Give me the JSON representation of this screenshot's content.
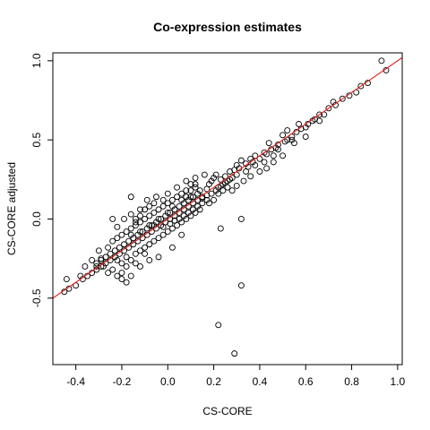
{
  "chart_data": {
    "type": "scatter",
    "title": "Co-expression estimates",
    "xlabel": "CS-CORE",
    "ylabel": "CS-CORE adjusted",
    "xlim": [
      -0.5,
      1.02
    ],
    "ylim": [
      -0.92,
      1.05
    ],
    "x_ticks": [
      -0.4,
      -0.2,
      0.0,
      0.2,
      0.4,
      0.6,
      0.8,
      1.0
    ],
    "x_tick_labels": [
      "-0.4",
      "-0.2",
      "0.0",
      "0.2",
      "0.4",
      "0.6",
      "0.8",
      "1.0"
    ],
    "y_ticks": [
      -0.5,
      0.0,
      0.5,
      1.0
    ],
    "y_tick_labels": [
      "-0.5",
      "0.0",
      "0.5",
      "1.0"
    ],
    "grid": false,
    "reference_line": {
      "slope": 1,
      "intercept": 0,
      "color": "#e0201b"
    },
    "point_color": "#000000",
    "series": [
      {
        "values": [
          [
            0.93,
            1.0
          ],
          [
            0.95,
            0.94
          ],
          [
            0.87,
            0.86
          ],
          [
            0.84,
            0.84
          ],
          [
            0.82,
            0.8
          ],
          [
            0.79,
            0.78
          ],
          [
            0.76,
            0.76
          ],
          [
            0.73,
            0.72
          ],
          [
            0.7,
            0.7
          ],
          [
            0.68,
            0.66
          ],
          [
            0.66,
            0.66
          ],
          [
            0.63,
            0.62
          ],
          [
            0.61,
            0.6
          ],
          [
            0.6,
            0.58
          ],
          [
            0.58,
            0.57
          ],
          [
            0.56,
            0.55
          ],
          [
            0.54,
            0.52
          ],
          [
            0.52,
            0.5
          ],
          [
            0.51,
            0.49
          ],
          [
            0.5,
            0.53
          ],
          [
            0.48,
            0.47
          ],
          [
            0.47,
            0.45
          ],
          [
            0.45,
            0.44
          ],
          [
            0.43,
            0.41
          ],
          [
            0.42,
            0.42
          ],
          [
            0.4,
            0.38
          ],
          [
            0.38,
            0.4
          ],
          [
            0.37,
            0.36
          ],
          [
            0.35,
            0.33
          ],
          [
            0.34,
            0.35
          ],
          [
            0.6,
            0.52
          ],
          [
            0.55,
            0.48
          ],
          [
            0.5,
            0.4
          ],
          [
            0.46,
            0.36
          ],
          [
            0.43,
            0.32
          ],
          [
            0.4,
            0.3
          ],
          [
            0.36,
            0.27
          ],
          [
            0.33,
            0.24
          ],
          [
            0.3,
            0.21
          ],
          [
            0.28,
            0.18
          ],
          [
            0.32,
            0.37
          ],
          [
            0.3,
            0.34
          ],
          [
            0.27,
            0.3
          ],
          [
            0.25,
            0.27
          ],
          [
            0.23,
            0.25
          ],
          [
            0.21,
            0.28
          ],
          [
            0.19,
            0.24
          ],
          [
            0.17,
            0.19
          ],
          [
            0.15,
            0.14
          ],
          [
            0.13,
            0.12
          ],
          [
            0.11,
            0.1
          ],
          [
            0.09,
            0.08
          ],
          [
            0.07,
            0.06
          ],
          [
            0.05,
            0.04
          ],
          [
            0.03,
            0.02
          ],
          [
            0.01,
            0.0
          ],
          [
            -0.01,
            -0.02
          ],
          [
            -0.03,
            -0.04
          ],
          [
            -0.05,
            -0.06
          ],
          [
            -0.07,
            -0.08
          ],
          [
            -0.09,
            -0.1
          ],
          [
            -0.11,
            -0.12
          ],
          [
            -0.13,
            -0.14
          ],
          [
            -0.15,
            -0.16
          ],
          [
            -0.17,
            -0.18
          ],
          [
            -0.19,
            -0.2
          ],
          [
            -0.21,
            -0.22
          ],
          [
            -0.23,
            -0.24
          ],
          [
            -0.25,
            -0.26
          ],
          [
            -0.27,
            -0.28
          ],
          [
            -0.29,
            -0.3
          ],
          [
            -0.31,
            -0.32
          ],
          [
            -0.33,
            -0.34
          ],
          [
            -0.35,
            -0.36
          ],
          [
            -0.37,
            -0.38
          ],
          [
            -0.4,
            -0.42
          ],
          [
            -0.43,
            -0.44
          ],
          [
            -0.45,
            -0.46
          ],
          [
            -0.44,
            -0.38
          ],
          [
            -0.38,
            -0.36
          ],
          [
            0.12,
            0.2
          ],
          [
            0.1,
            0.22
          ],
          [
            0.08,
            0.18
          ],
          [
            0.06,
            0.16
          ],
          [
            0.04,
            0.14
          ],
          [
            0.02,
            0.12
          ],
          [
            0.0,
            0.1
          ],
          [
            -0.02,
            0.08
          ],
          [
            -0.04,
            0.06
          ],
          [
            -0.06,
            0.04
          ],
          [
            -0.08,
            0.02
          ],
          [
            -0.1,
            0.0
          ],
          [
            -0.12,
            -0.02
          ],
          [
            -0.14,
            -0.04
          ],
          [
            -0.16,
            -0.06
          ],
          [
            -0.18,
            -0.08
          ],
          [
            -0.2,
            -0.1
          ],
          [
            -0.22,
            -0.12
          ],
          [
            -0.24,
            -0.14
          ],
          [
            -0.26,
            -0.18
          ],
          [
            0.14,
            0.06
          ],
          [
            0.12,
            0.04
          ],
          [
            0.1,
            0.02
          ],
          [
            0.08,
            0.0
          ],
          [
            0.06,
            -0.02
          ],
          [
            0.04,
            -0.04
          ],
          [
            0.02,
            -0.06
          ],
          [
            0.0,
            -0.08
          ],
          [
            -0.02,
            -0.1
          ],
          [
            -0.04,
            -0.12
          ],
          [
            -0.06,
            -0.14
          ],
          [
            -0.08,
            -0.16
          ],
          [
            -0.1,
            -0.18
          ],
          [
            -0.12,
            -0.2
          ],
          [
            -0.14,
            -0.22
          ],
          [
            -0.16,
            -0.26
          ],
          [
            -0.18,
            -0.3
          ],
          [
            -0.2,
            -0.34
          ],
          [
            -0.22,
            -0.36
          ],
          [
            -0.2,
            -0.38
          ],
          [
            -0.18,
            -0.4
          ],
          [
            -0.16,
            -0.36
          ],
          [
            -0.24,
            -0.32
          ],
          [
            -0.26,
            -0.34
          ],
          [
            -0.28,
            -0.3
          ],
          [
            -0.12,
            -0.3
          ],
          [
            -0.08,
            -0.26
          ],
          [
            -0.04,
            -0.24
          ],
          [
            0.02,
            -0.18
          ],
          [
            0.06,
            -0.1
          ],
          [
            -0.22,
            -0.05
          ],
          [
            -0.19,
            0.0
          ],
          [
            -0.16,
            0.03
          ],
          [
            -0.14,
            0.0
          ],
          [
            -0.12,
            0.06
          ],
          [
            -0.16,
            0.14
          ],
          [
            -0.09,
            0.12
          ],
          [
            -0.05,
            0.14
          ],
          [
            0.0,
            0.16
          ],
          [
            0.04,
            0.2
          ],
          [
            0.08,
            0.24
          ],
          [
            0.12,
            0.26
          ],
          [
            0.16,
            0.28
          ],
          [
            0.18,
            0.22
          ],
          [
            0.2,
            0.26
          ],
          [
            0.22,
            0.2
          ],
          [
            0.24,
            0.22
          ],
          [
            0.26,
            0.24
          ],
          [
            0.28,
            0.26
          ],
          [
            0.3,
            0.28
          ],
          [
            0.18,
            0.1
          ],
          [
            0.2,
            0.12
          ],
          [
            0.22,
            0.16
          ],
          [
            0.24,
            0.18
          ],
          [
            0.26,
            0.2
          ],
          [
            -0.24,
            0.0
          ],
          [
            -0.06,
            -0.04
          ],
          [
            -0.08,
            0.08
          ],
          [
            0.1,
            0.14
          ],
          [
            0.14,
            0.18
          ],
          [
            -0.3,
            -0.2
          ],
          [
            -0.33,
            -0.26
          ],
          [
            -0.36,
            -0.3
          ],
          [
            -0.29,
            -0.25
          ],
          [
            -0.31,
            -0.3
          ],
          [
            0.32,
            -0.42
          ],
          [
            0.32,
            0.0
          ],
          [
            0.23,
            -0.06
          ],
          [
            0.22,
            -0.67
          ],
          [
            0.29,
            -0.85
          ],
          [
            0.44,
            0.48
          ],
          [
            0.52,
            0.56
          ],
          [
            0.57,
            0.6
          ],
          [
            0.64,
            0.63
          ],
          [
            0.72,
            0.74
          ],
          [
            0.42,
            0.36
          ],
          [
            0.46,
            0.4
          ],
          [
            0.48,
            0.44
          ],
          [
            0.54,
            0.5
          ],
          [
            0.66,
            0.62
          ],
          [
            0.38,
            0.34
          ],
          [
            0.36,
            0.38
          ],
          [
            0.34,
            0.3
          ],
          [
            0.31,
            0.32
          ],
          [
            0.29,
            0.31
          ],
          [
            0.27,
            0.25
          ],
          [
            0.25,
            0.23
          ],
          [
            0.23,
            0.21
          ],
          [
            0.21,
            0.18
          ],
          [
            0.19,
            0.16
          ],
          [
            0.17,
            0.15
          ],
          [
            0.15,
            0.13
          ],
          [
            0.13,
            0.16
          ],
          [
            0.11,
            0.14
          ],
          [
            0.09,
            0.12
          ],
          [
            0.07,
            0.1
          ],
          [
            0.05,
            0.08
          ],
          [
            0.03,
            0.06
          ],
          [
            0.01,
            0.04
          ],
          [
            -0.01,
            0.02
          ],
          [
            -0.03,
            0.0
          ],
          [
            -0.05,
            -0.02
          ],
          [
            -0.07,
            -0.04
          ],
          [
            -0.09,
            -0.06
          ],
          [
            -0.11,
            -0.08
          ],
          [
            -0.13,
            -0.1
          ],
          [
            -0.15,
            -0.12
          ],
          [
            -0.17,
            -0.14
          ],
          [
            -0.19,
            -0.16
          ],
          [
            -0.21,
            -0.18
          ],
          [
            -0.23,
            -0.2
          ],
          [
            -0.25,
            -0.22
          ],
          [
            -0.27,
            -0.24
          ],
          [
            -0.29,
            -0.26
          ],
          [
            -0.31,
            -0.28
          ],
          [
            0.05,
            0.0
          ],
          [
            0.03,
            -0.01
          ],
          [
            0.01,
            -0.03
          ],
          [
            -0.02,
            -0.05
          ],
          [
            0.07,
            0.02
          ],
          [
            0.09,
            0.04
          ],
          [
            0.11,
            0.06
          ],
          [
            0.13,
            0.08
          ],
          [
            0.15,
            0.1
          ],
          [
            0.17,
            0.12
          ],
          [
            -0.1,
            -0.22
          ],
          [
            -0.14,
            -0.28
          ],
          [
            -0.2,
            -0.28
          ],
          [
            -0.22,
            -0.26
          ],
          [
            -0.18,
            -0.24
          ],
          [
            -0.02,
            0.12
          ],
          [
            -0.06,
            0.1
          ],
          [
            -0.1,
            0.06
          ],
          [
            -0.12,
            0.02
          ],
          [
            -0.14,
            -0.02
          ],
          [
            0.02,
            0.08
          ],
          [
            0.06,
            0.12
          ],
          [
            0.08,
            0.14
          ],
          [
            0.1,
            0.18
          ],
          [
            0.12,
            0.22
          ],
          [
            0.0,
            0.04
          ],
          [
            -0.04,
            0.0
          ],
          [
            -0.08,
            -0.04
          ],
          [
            -0.12,
            -0.08
          ],
          [
            -0.16,
            -0.1
          ]
        ]
      }
    ]
  }
}
